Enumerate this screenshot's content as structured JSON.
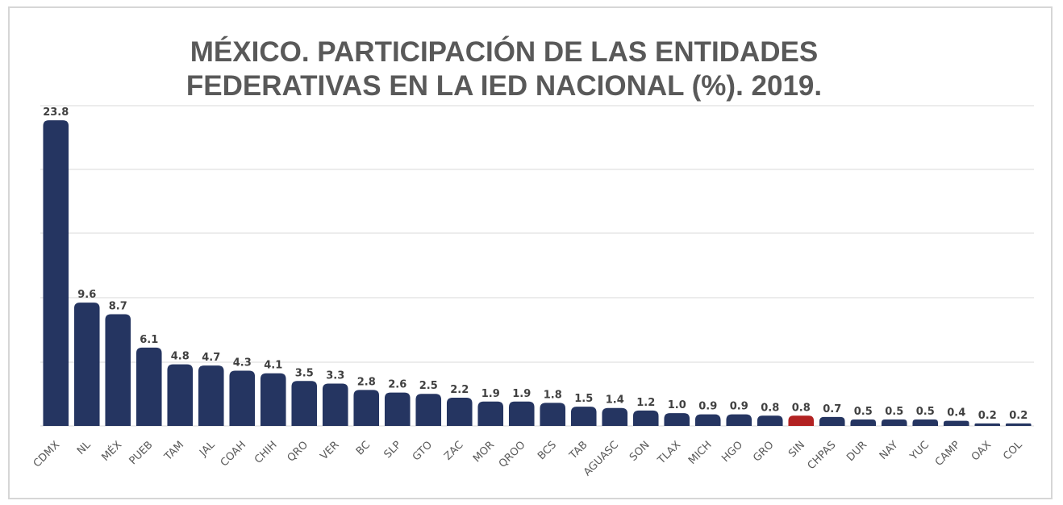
{
  "chart_data": {
    "type": "bar",
    "title_lines": [
      "MÉXICO. PARTICIPACIÓN DE LAS ENTIDADES",
      "FEDERATIVAS EN LA IED NACIONAL (%). 2019."
    ],
    "categories": [
      "CDMX",
      "NL",
      "MÉX",
      "PUEB",
      "TAM",
      "JAL",
      "COAH",
      "CHIH",
      "QRO",
      "VER",
      "BC",
      "SLP",
      "GTO",
      "ZAC",
      "MOR",
      "QROO",
      "BCS",
      "TAB",
      "AGUASC",
      "SON",
      "TLAX",
      "MICH",
      "HGO",
      "GRO",
      "SIN",
      "CHPAS",
      "DUR",
      "NAY",
      "YUC",
      "CAMP",
      "OAX",
      "COL"
    ],
    "values": [
      23.8,
      9.6,
      8.7,
      6.1,
      4.8,
      4.7,
      4.3,
      4.1,
      3.5,
      3.3,
      2.8,
      2.6,
      2.5,
      2.2,
      1.9,
      1.9,
      1.8,
      1.5,
      1.4,
      1.2,
      1.0,
      0.9,
      0.9,
      0.8,
      0.8,
      0.7,
      0.5,
      0.5,
      0.5,
      0.4,
      0.2,
      0.2
    ],
    "value_labels": [
      "23.8",
      "9.6",
      "8.7",
      "6.1",
      "4.8",
      "4.7",
      "4.3",
      "4.1",
      "3.5",
      "3.3",
      "2.8",
      "2.6",
      "2.5",
      "2.2",
      "1.9",
      "1.9",
      "1.8",
      "1.5",
      "1.4",
      "1.2",
      "1.0",
      "0.9",
      "0.9",
      "0.8",
      "0.8",
      "0.7",
      "0.5",
      "0.5",
      "0.5",
      "0.4",
      "0.2",
      "0.2"
    ],
    "highlight_category": "SIN",
    "colors": {
      "bar": "#253561",
      "highlight": "#b22222",
      "grid": "#d9d9d9",
      "label": "#404040"
    },
    "ylim": [
      0,
      24.5
    ],
    "grid": true,
    "legend": "none",
    "xlabel": "",
    "ylabel": ""
  }
}
